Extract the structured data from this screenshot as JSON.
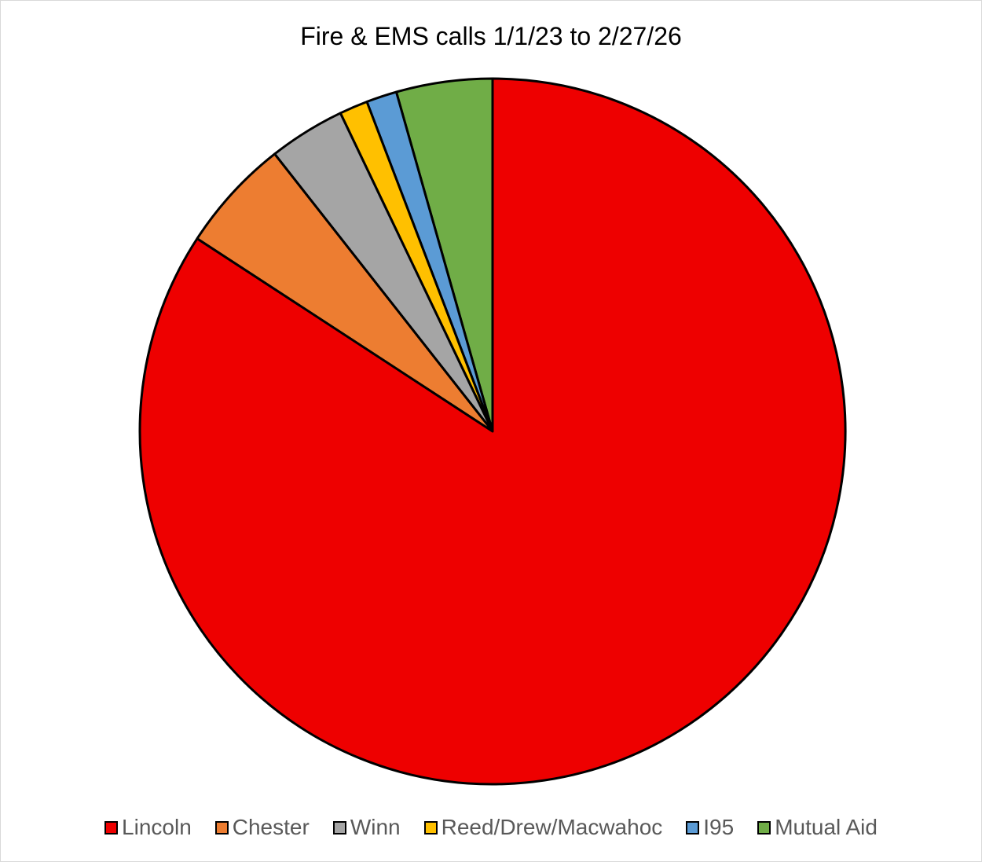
{
  "chart_data": {
    "type": "pie",
    "title": "Fire & EMS calls 1/1/23 to 2/27/26",
    "categories": [
      "Lincoln",
      "Chester",
      "Winn",
      "Reed/Drew/Macwahoc",
      "I95",
      "Mutual Aid"
    ],
    "values": [
      84.2,
      5.2,
      3.5,
      1.3,
      1.4,
      4.4
    ],
    "value_unit": "percent of calls (estimated)",
    "colors": [
      "#EE0000",
      "#ED7D31",
      "#A5A5A5",
      "#FFC000",
      "#5B9BD5",
      "#70AD47"
    ],
    "slice_order": "counter-clockwise from 12 o'clock: Mutual Aid, I95, Reed/Drew/Macwahoc, Winn, Chester, Lincoln",
    "legend_position": "bottom",
    "slice_outline_color": "#000000"
  }
}
